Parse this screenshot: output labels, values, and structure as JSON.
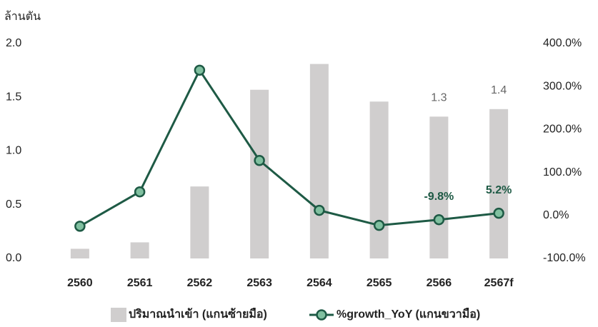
{
  "chart_data": {
    "type": "bar_line",
    "y_label": "ล้านตัน",
    "categories": [
      "2560",
      "2561",
      "2562",
      "2563",
      "2564",
      "2565",
      "2566",
      "2567f"
    ],
    "series": [
      {
        "name": "ปริมาณนำเข้า (แกนซ้ายมือ)",
        "type": "bar",
        "color": "#d0cece",
        "values": [
          0.09,
          0.15,
          0.67,
          1.57,
          1.81,
          1.46,
          1.32,
          1.39
        ],
        "value_labels": [
          null,
          null,
          null,
          null,
          null,
          null,
          "1.3",
          "1.4"
        ]
      },
      {
        "name": "%growth_YoY (แกนขวามือ)",
        "type": "line",
        "axis": "y2",
        "color": "#1e5a45",
        "marker_color": "#80c0a0",
        "values": [
          -25,
          55,
          338,
          128,
          12,
          -23,
          -9.8,
          5.2
        ],
        "value_labels": [
          null,
          null,
          null,
          null,
          null,
          null,
          "-9.8%",
          "5.2%"
        ]
      }
    ],
    "ylim": [
      0,
      2
    ],
    "yticks": [
      {
        "value": 0,
        "label": "0.0"
      },
      0.5,
      {
        "value": 1,
        "label": "1.0"
      },
      1.5,
      {
        "value": 2,
        "label": "2.0"
      }
    ],
    "y2lim": [
      -100,
      400
    ],
    "y2ticks": [
      {
        "value": -100,
        "label": "-100.0%"
      },
      {
        "value": 0,
        "label": "0.0%"
      },
      {
        "value": 100,
        "label": "100.0%"
      },
      {
        "value": 200,
        "label": "200.0%"
      },
      {
        "value": 300,
        "label": "300.0%"
      },
      {
        "value": 400,
        "label": "400.0%"
      }
    ],
    "grid": false
  }
}
